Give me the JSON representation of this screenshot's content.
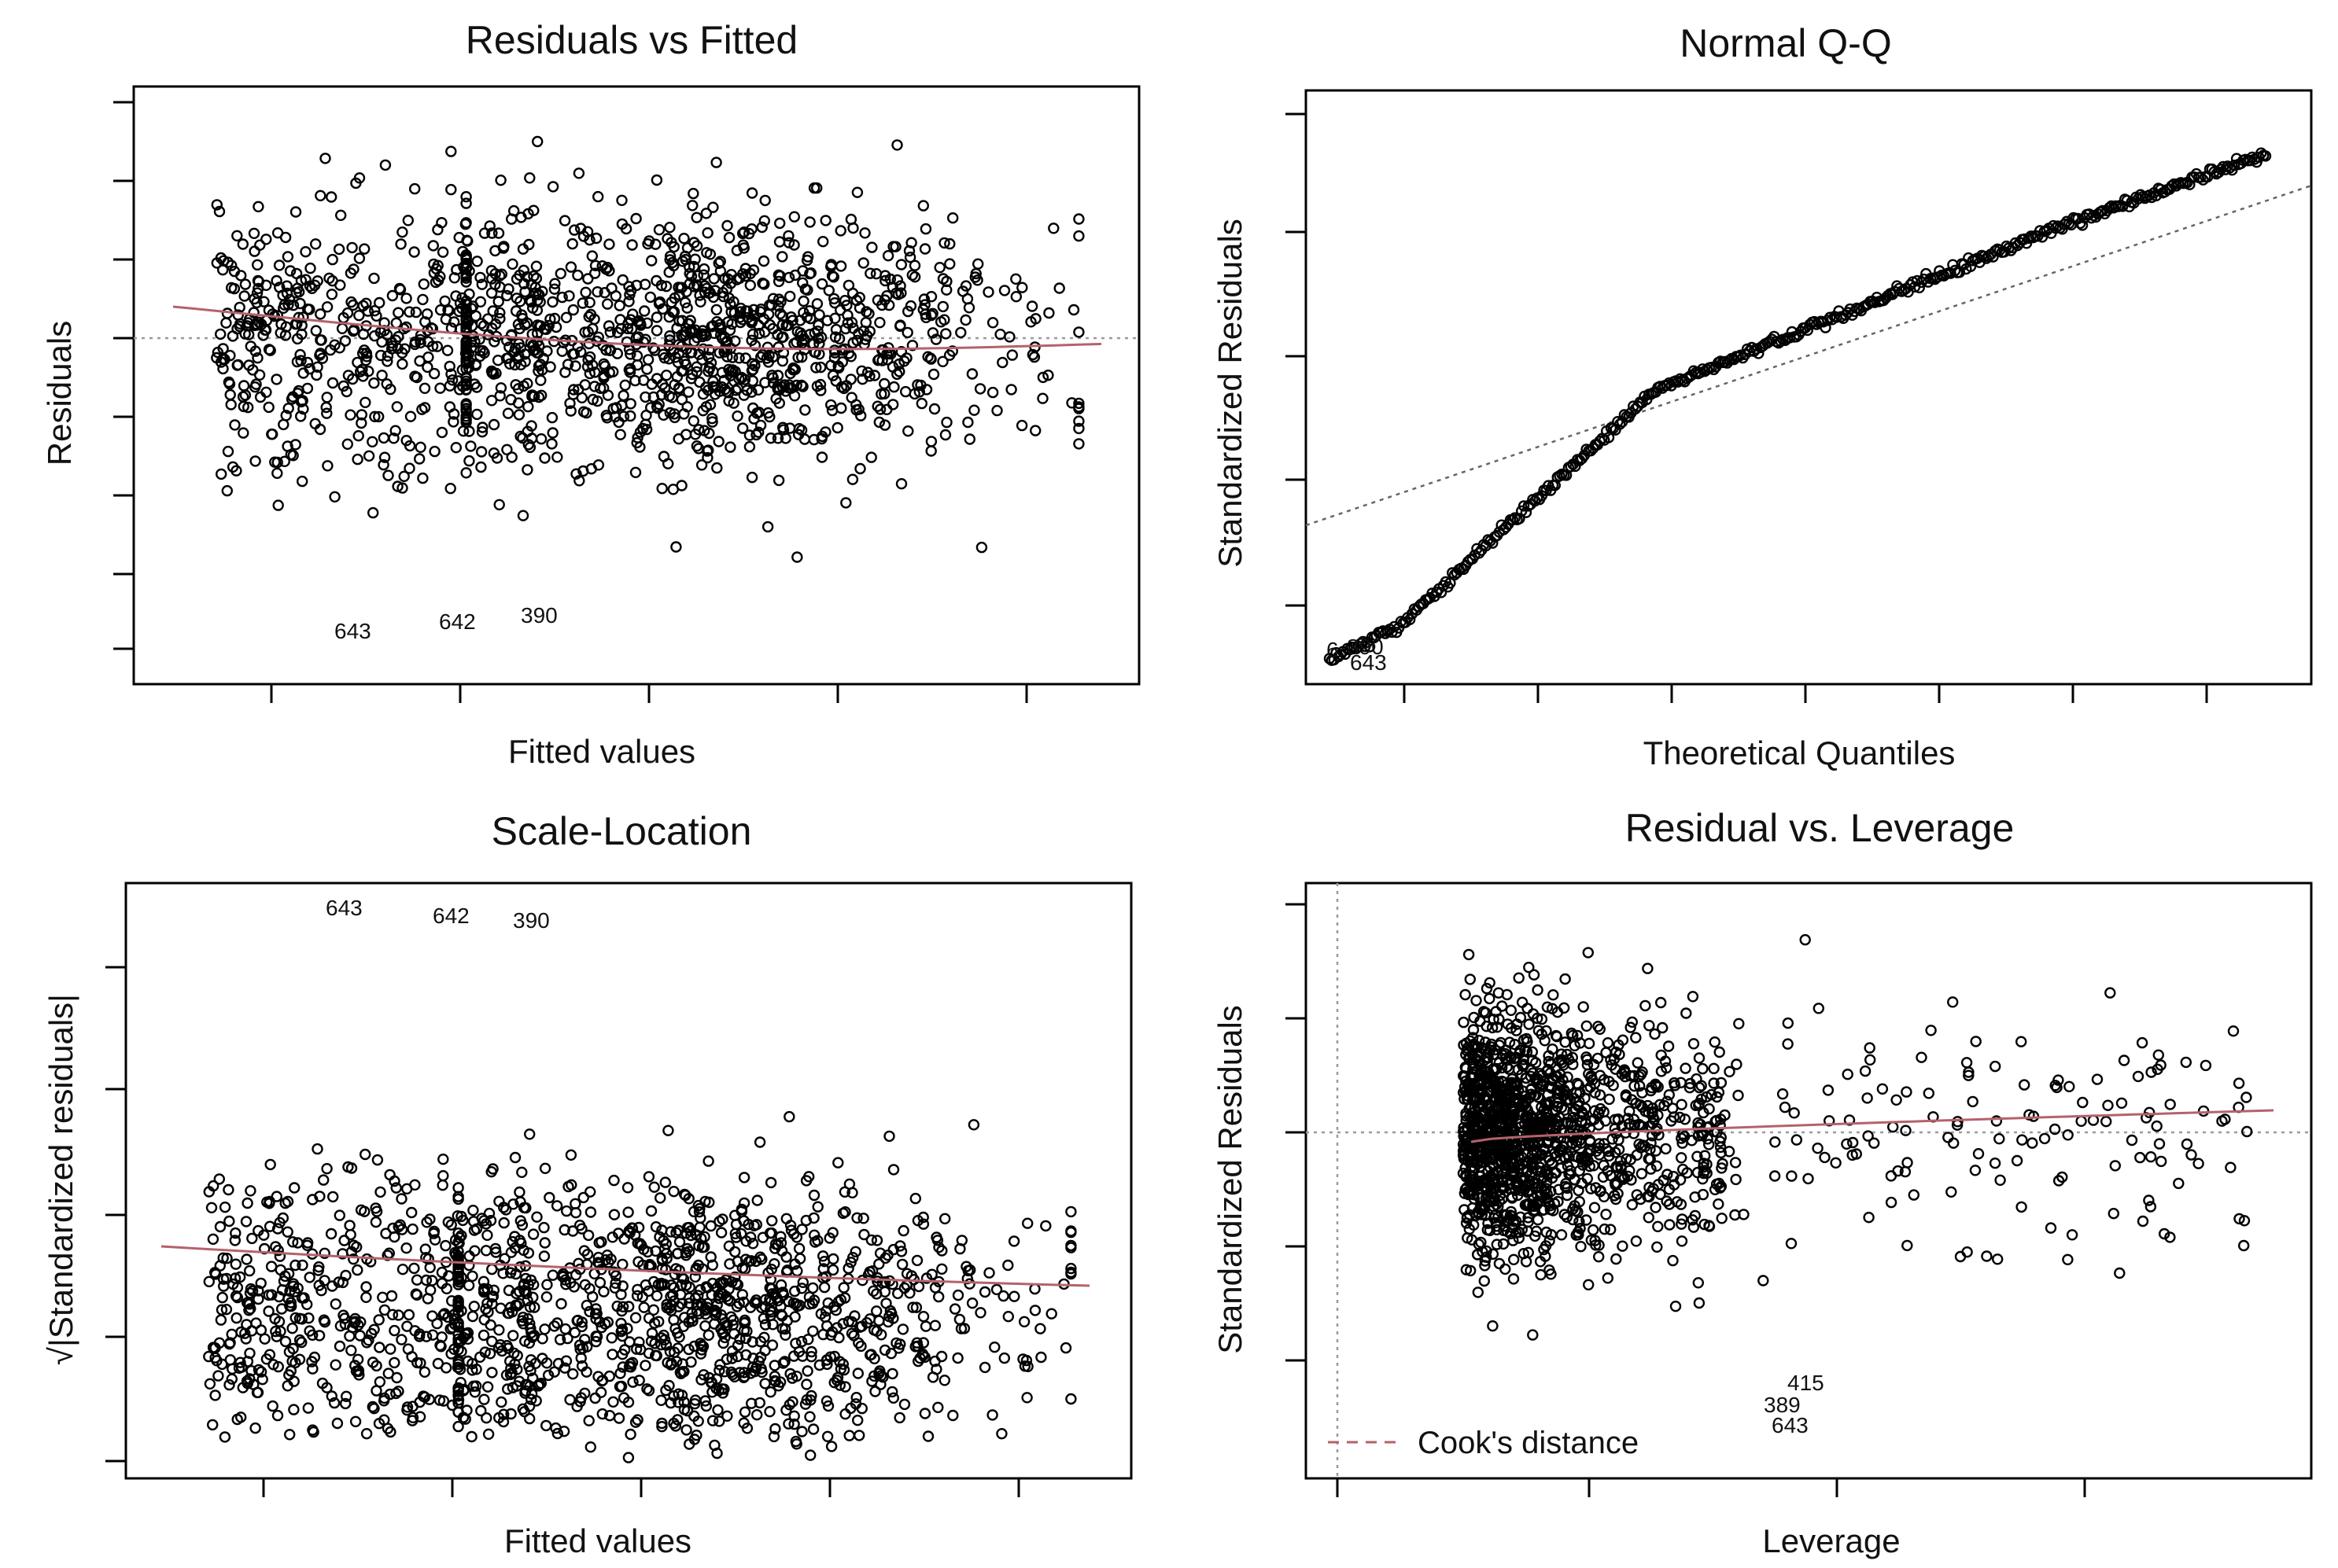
{
  "chart_data": [
    {
      "id": "resid_fitted",
      "type": "scatter",
      "title": "Residuals vs Fitted",
      "xlabel": "Fitted values",
      "ylabel": "Residuals",
      "refline": "y=0 dotted",
      "smoother": "loess (red)",
      "labeled_points": [
        "643",
        "642",
        "390"
      ]
    },
    {
      "id": "normal_qq",
      "type": "scatter",
      "title": "Normal Q-Q",
      "xlabel": "Theoretical Quantiles",
      "ylabel": "Standardized Residuals",
      "refline": "qq-line dotted",
      "labeled_points": [
        "6",
        "390",
        "643"
      ]
    },
    {
      "id": "scale_location",
      "type": "scatter",
      "title": "Scale-Location",
      "xlabel": "Fitted values",
      "ylabel": "√|Standardized residuals|",
      "smoother": "loess (red)",
      "labeled_points": [
        "643",
        "642",
        "390"
      ]
    },
    {
      "id": "resid_leverage",
      "type": "scatter",
      "title": "Residual vs. Leverage",
      "xlabel": "Leverage",
      "ylabel": "Standardized Residuals",
      "refline": "y=0 and x=0 dotted",
      "smoother": "loess (red)",
      "legend": {
        "entries": [
          "Cook's distance"
        ],
        "placement": "bottom-left"
      },
      "labeled_points": [
        "415",
        "389",
        "643"
      ]
    }
  ],
  "colors": {
    "points": "#000000",
    "smoother": "#b5626b",
    "reference": "#9a9a9a"
  }
}
